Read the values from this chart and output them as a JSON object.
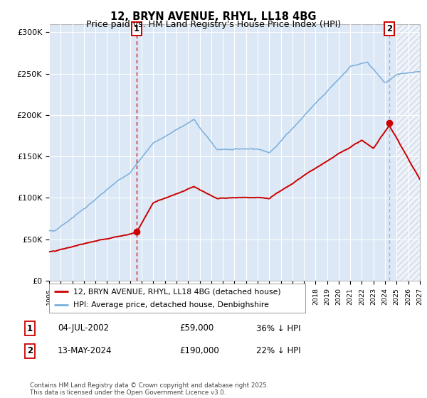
{
  "title": "12, BRYN AVENUE, RHYL, LL18 4BG",
  "subtitle": "Price paid vs. HM Land Registry's House Price Index (HPI)",
  "ylim": [
    0,
    310000
  ],
  "yticks": [
    0,
    50000,
    100000,
    150000,
    200000,
    250000,
    300000
  ],
  "ytick_labels": [
    "£0",
    "£50K",
    "£100K",
    "£150K",
    "£200K",
    "£250K",
    "£300K"
  ],
  "red_line_color": "#cc0000",
  "blue_line_color": "#7aaedc",
  "vline1_color": "#cc0000",
  "vline2_color": "#aaaacc",
  "background_color": "#ffffff",
  "plot_bg_color": "#dce8f5",
  "grid_color": "#ffffff",
  "legend_red_label": "12, BRYN AVENUE, RHYL, LL18 4BG (detached house)",
  "legend_blue_label": "HPI: Average price, detached house, Denbighshire",
  "sale1_year": 2002.54,
  "sale1_value": 59000,
  "sale2_year": 2024.37,
  "sale2_value": 190000,
  "table_row1": [
    "1",
    "04-JUL-2002",
    "£59,000",
    "36% ↓ HPI"
  ],
  "table_row2": [
    "2",
    "13-MAY-2024",
    "£190,000",
    "22% ↓ HPI"
  ],
  "footnote": "Contains HM Land Registry data © Crown copyright and database right 2025.\nThis data is licensed under the Open Government Licence v3.0."
}
